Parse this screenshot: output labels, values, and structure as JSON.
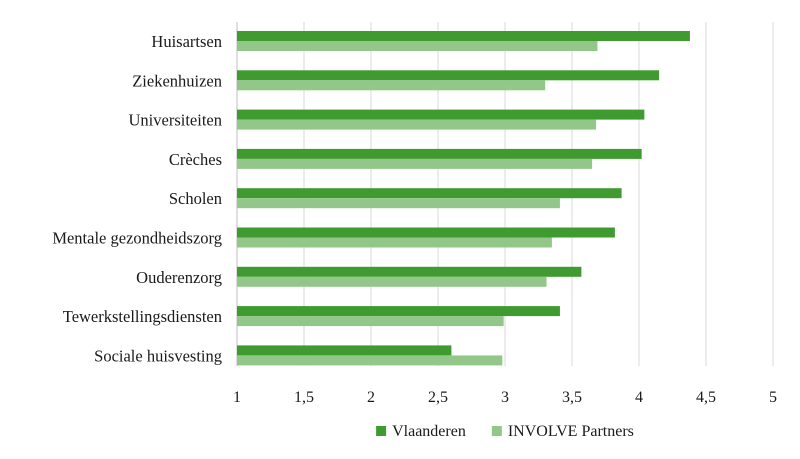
{
  "chart_data": {
    "type": "bar",
    "orientation": "horizontal",
    "categories": [
      "Huisartsen",
      "Ziekenhuizen",
      "Universiteiten",
      "Crèches",
      "Scholen",
      "Mentale gezondheidszorg",
      "Ouderenzorg",
      "Tewerkstellingsdiensten",
      "Sociale huisvesting"
    ],
    "series": [
      {
        "name": "Vlaanderen",
        "color": "#3f9a30",
        "values": [
          4.38,
          4.15,
          4.04,
          4.02,
          3.87,
          3.82,
          3.57,
          3.41,
          2.6
        ]
      },
      {
        "name": "INVOLVE Partners",
        "color": "#93c789",
        "values": [
          3.69,
          3.3,
          3.68,
          3.65,
          3.41,
          3.35,
          3.31,
          2.99,
          2.98
        ]
      }
    ],
    "xlim": [
      1,
      5
    ],
    "xticks": [
      1,
      1.5,
      2,
      2.5,
      3,
      3.5,
      4,
      4.5,
      5
    ],
    "xtick_labels": [
      "1",
      "1,5",
      "2",
      "2,5",
      "3",
      "3,5",
      "4",
      "4,5",
      "5"
    ],
    "grid": true,
    "legend_position": "bottom"
  }
}
